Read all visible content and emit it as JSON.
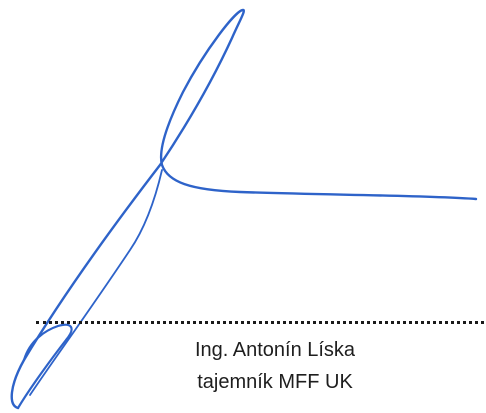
{
  "signature": {
    "ink_color": "#2e63c9",
    "name": "Ing. Antonín Líska",
    "title": "tajemník MFF UK"
  }
}
